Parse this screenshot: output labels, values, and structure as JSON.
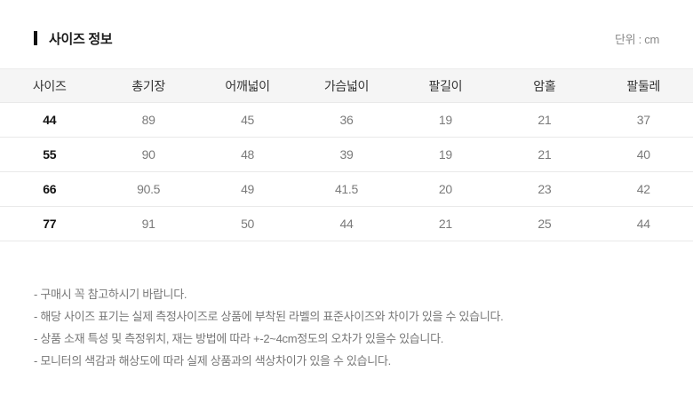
{
  "header": {
    "title": "사이즈 정보",
    "unit_label": "단위 : cm"
  },
  "size_table": {
    "columns": [
      "사이즈",
      "총기장",
      "어깨넓이",
      "가슴넓이",
      "팔길이",
      "암홀",
      "팔둘레"
    ],
    "rows": [
      [
        "44",
        "89",
        "45",
        "36",
        "19",
        "21",
        "37"
      ],
      [
        "55",
        "90",
        "48",
        "39",
        "19",
        "21",
        "40"
      ],
      [
        "66",
        "90.5",
        "49",
        "41.5",
        "20",
        "23",
        "42"
      ],
      [
        "77",
        "91",
        "50",
        "44",
        "21",
        "25",
        "44"
      ]
    ]
  },
  "notes": [
    "- 구매시 꼭 참고하시기 바랍니다.",
    "- 해당 사이즈 표기는 실제 측정사이즈로 상품에 부착된 라벨의 표준사이즈와 차이가 있을 수 있습니다.",
    "- 상품 소재 특성 및 측정위치, 재는 방법에 따라 +-2~4cm정도의 오차가 있을수 있습니다.",
    "- 모니터의 색감과 해상도에 따라 실제 상품과의 색상차이가 있을 수 있습니다."
  ],
  "colors": {
    "header_row_bg": "#f5f5f5",
    "row_border": "#e9e9e9",
    "title_text": "#1a1a1a",
    "value_text": "#7a7a7a",
    "note_text": "#777777"
  }
}
